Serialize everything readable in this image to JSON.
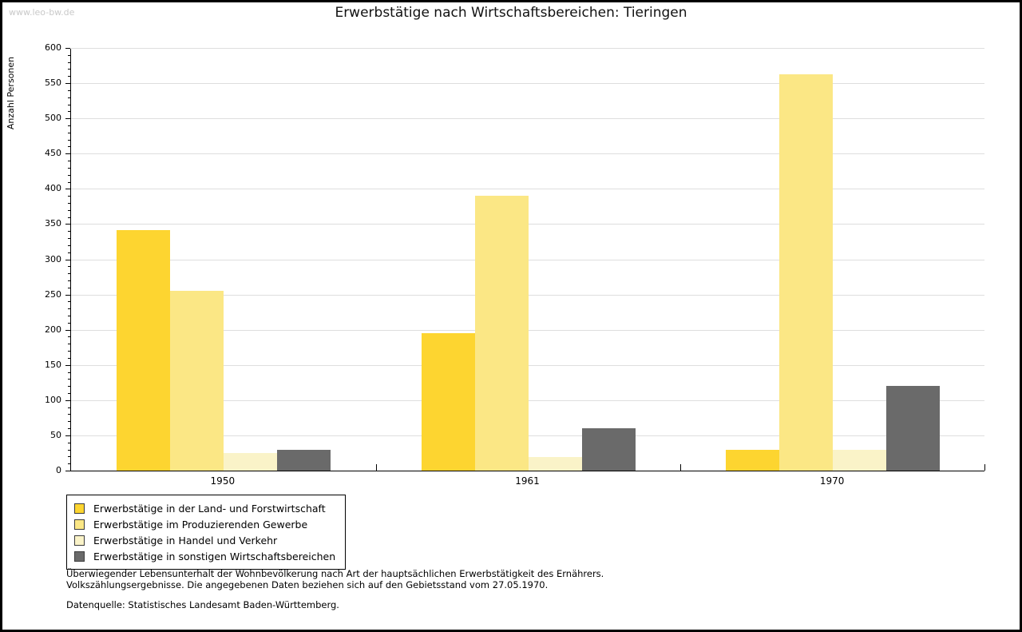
{
  "watermark": "www.leo-bw.de",
  "title": "Erwerbstätige nach Wirtschaftsbereichen: Tieringen",
  "footer": {
    "line1": "Überwiegender Lebensunterhalt der Wohnbevölkerung nach Art der hauptsächlichen Erwerbstätigkeit des Ernährers.",
    "line2": "Volkszählungsergebnisse. Die angegebenen Daten beziehen sich auf den Gebietsstand vom 27.05.1970.",
    "source": "Datenquelle: Statistisches Landesamt Baden-Württemberg."
  },
  "colors": {
    "gridline": "#dedede",
    "axis": "#000000",
    "watermark": "#c9c9c9"
  },
  "chart_data": {
    "type": "bar",
    "title": "Erwerbstätige nach Wirtschaftsbereichen: Tieringen",
    "xlabel": "",
    "ylabel": "Anzahl Personen",
    "categories": [
      "1950",
      "1961",
      "1970"
    ],
    "series": [
      {
        "name": "Erwerbstätige in der Land- und Forstwirtschaft",
        "color": "#FDD530",
        "values": [
          341,
          195,
          30
        ]
      },
      {
        "name": "Erwerbstätige im Produzierenden Gewerbe",
        "color": "#FBE785",
        "values": [
          255,
          390,
          563
        ]
      },
      {
        "name": "Erwerbstätige in Handel und Verkehr",
        "color": "#FAF3C8",
        "values": [
          25,
          19,
          30
        ]
      },
      {
        "name": "Erwerbstätige in sonstigen Wirtschaftsbereichen",
        "color": "#6A6A6A",
        "values": [
          30,
          60,
          120
        ]
      }
    ],
    "ylim": [
      0,
      600
    ],
    "yticks": [
      0,
      50,
      100,
      150,
      200,
      250,
      300,
      350,
      400,
      450,
      500,
      550,
      600
    ],
    "ytick_minor_step": 10,
    "grid": true,
    "legend_position": "bottom-left"
  }
}
